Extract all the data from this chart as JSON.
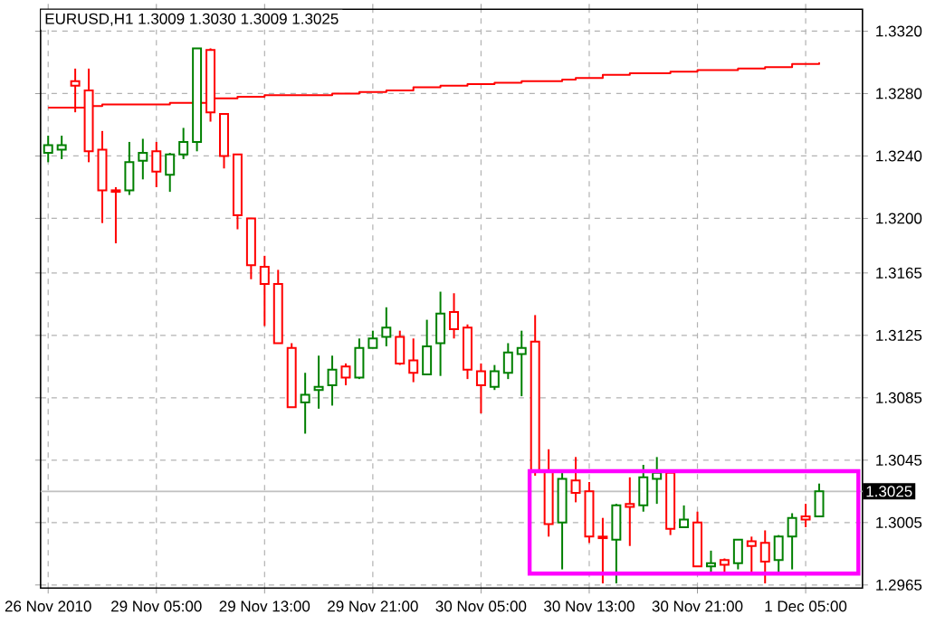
{
  "chart_data": {
    "type": "candlestick",
    "title": "EURUSD,H1  1.3009 1.3030 1.3009 1.3025",
    "categories": [
      "26 Nov 2010",
      null,
      null,
      null,
      null,
      null,
      null,
      null,
      "29 Nov 05:00",
      null,
      null,
      null,
      null,
      null,
      null,
      null,
      "29 Nov 13:00",
      null,
      null,
      null,
      null,
      null,
      null,
      null,
      "29 Nov 21:00",
      null,
      null,
      null,
      null,
      null,
      null,
      null,
      "30 Nov 05:00",
      null,
      null,
      null,
      null,
      null,
      null,
      null,
      "30 Nov 13:00",
      null,
      null,
      null,
      null,
      null,
      null,
      null,
      "30 Nov 21:00",
      null,
      null,
      null,
      null,
      null,
      null,
      null,
      "1 Dec 05:00",
      null
    ],
    "ohlc": [
      [
        1.3242,
        1.3253,
        1.3236,
        1.3247
      ],
      [
        1.3244,
        1.3253,
        1.3238,
        1.3247
      ],
      [
        1.3288,
        1.3296,
        1.3268,
        1.3285
      ],
      [
        1.3282,
        1.3296,
        1.3236,
        1.3243
      ],
      [
        1.3244,
        1.3256,
        1.3197,
        1.3218
      ],
      [
        1.3218,
        1.322,
        1.3184,
        1.3217
      ],
      [
        1.3218,
        1.3249,
        1.3215,
        1.3236
      ],
      [
        1.3237,
        1.3251,
        1.3225,
        1.3242
      ],
      [
        1.3243,
        1.3249,
        1.322,
        1.323
      ],
      [
        1.3228,
        1.3242,
        1.3217,
        1.3241
      ],
      [
        1.3241,
        1.3258,
        1.3238,
        1.3249
      ],
      [
        1.3249,
        1.3309,
        1.3243,
        1.3309
      ],
      [
        1.3308,
        1.3309,
        1.3262,
        1.3268
      ],
      [
        1.3267,
        1.3267,
        1.3232,
        1.324
      ],
      [
        1.3241,
        1.3241,
        1.3193,
        1.3202
      ],
      [
        1.32,
        1.32,
        1.3161,
        1.317
      ],
      [
        1.3169,
        1.3176,
        1.3131,
        1.3158
      ],
      [
        1.3158,
        1.3167,
        1.312,
        1.312
      ],
      [
        1.3117,
        1.312,
        1.3079,
        1.3079
      ],
      [
        1.3082,
        1.3101,
        1.3062,
        1.3087
      ],
      [
        1.309,
        1.3112,
        1.3078,
        1.3092
      ],
      [
        1.3093,
        1.3112,
        1.308,
        1.3103
      ],
      [
        1.3105,
        1.3107,
        1.3093,
        1.3098
      ],
      [
        1.3098,
        1.3123,
        1.3097,
        1.3117
      ],
      [
        1.3117,
        1.3128,
        1.3117,
        1.3123
      ],
      [
        1.3124,
        1.3143,
        1.3118,
        1.313
      ],
      [
        1.3124,
        1.3128,
        1.3106,
        1.3107
      ],
      [
        1.3109,
        1.3123,
        1.3095,
        1.3101
      ],
      [
        1.31,
        1.3135,
        1.31,
        1.3118
      ],
      [
        1.312,
        1.3153,
        1.3099,
        1.3139
      ],
      [
        1.314,
        1.3152,
        1.3123,
        1.3129
      ],
      [
        1.313,
        1.3132,
        1.3097,
        1.3103
      ],
      [
        1.3102,
        1.3107,
        1.3075,
        1.3093
      ],
      [
        1.3092,
        1.3106,
        1.309,
        1.3102
      ],
      [
        1.3101,
        1.312,
        1.3097,
        1.3114
      ],
      [
        1.3113,
        1.3128,
        1.3086,
        1.3117
      ],
      [
        1.3121,
        1.3138,
        1.3035,
        1.3038
      ],
      [
        1.3038,
        1.3052,
        1.2996,
        1.3004
      ],
      [
        1.3005,
        1.3038,
        1.2975,
        1.3033
      ],
      [
        1.3032,
        1.3047,
        1.3018,
        1.3024
      ],
      [
        1.3025,
        1.3031,
        1.2992,
        1.2996
      ],
      [
        1.2996,
        1.3008,
        1.2966,
        1.2995
      ],
      [
        1.2994,
        1.3017,
        1.2966,
        1.3016
      ],
      [
        1.3017,
        1.3034,
        1.299,
        1.3015
      ],
      [
        1.3016,
        1.3042,
        1.3012,
        1.3034
      ],
      [
        1.3033,
        1.3047,
        1.3017,
        1.3037
      ],
      [
        1.3037,
        1.3037,
        1.2997,
        1.3001
      ],
      [
        1.3002,
        1.3016,
        1.3002,
        1.3007
      ],
      [
        1.3005,
        1.3012,
        1.2977,
        1.2977
      ],
      [
        1.2977,
        1.2987,
        1.2973,
        1.2979
      ],
      [
        1.2981,
        1.2982,
        1.2973,
        1.2978
      ],
      [
        1.2979,
        1.2994,
        1.2975,
        1.2994
      ],
      [
        1.2993,
        1.2996,
        1.2973,
        1.299
      ],
      [
        1.2992,
        1.3,
        1.2966,
        1.298
      ],
      [
        1.2981,
        1.2997,
        1.2973,
        1.2996
      ],
      [
        1.2996,
        1.3011,
        1.2975,
        1.3008
      ],
      [
        1.3009,
        1.3017,
        1.3002,
        1.3007
      ],
      [
        1.3009,
        1.303,
        1.3009,
        1.3025
      ]
    ],
    "colors": [
      "#008000",
      "#008000",
      "#ff0000",
      "#ff0000",
      "#ff0000",
      "#ff0000",
      "#008000",
      "#008000",
      "#ff0000",
      "#008000",
      "#008000",
      "#008000",
      "#ff0000",
      "#ff0000",
      "#ff0000",
      "#ff0000",
      "#ff0000",
      "#ff0000",
      "#ff0000",
      "#008000",
      "#008000",
      "#008000",
      "#ff0000",
      "#008000",
      "#008000",
      "#008000",
      "#ff0000",
      "#ff0000",
      "#008000",
      "#008000",
      "#ff0000",
      "#ff0000",
      "#ff0000",
      "#008000",
      "#008000",
      "#008000",
      "#ff0000",
      "#ff0000",
      "#008000",
      "#ff0000",
      "#ff0000",
      "#ff0000",
      "#008000",
      "#ff0000",
      "#008000",
      "#008000",
      "#ff0000",
      "#008000",
      "#ff0000",
      "#008000",
      "#ff0000",
      "#008000",
      "#ff0000",
      "#ff0000",
      "#008000",
      "#008000",
      "#ff0000",
      "#008000"
    ],
    "series": [
      {
        "type": "step",
        "color": "#ff0000",
        "values": [
          1.3271,
          1.3271,
          1.3271,
          1.3272,
          1.3273,
          1.3273,
          1.3273,
          1.3273,
          1.3273,
          1.3274,
          1.3274,
          1.3274,
          1.3277,
          1.3277,
          1.3278,
          1.3278,
          1.3279,
          1.3279,
          1.3279,
          1.3279,
          1.3279,
          1.328,
          1.328,
          1.3281,
          1.3281,
          1.3282,
          1.3282,
          1.3284,
          1.3284,
          1.3285,
          1.3285,
          1.3286,
          1.3286,
          1.3287,
          1.3287,
          1.3288,
          1.3288,
          1.3288,
          1.3289,
          1.329,
          1.329,
          1.3292,
          1.3292,
          1.3293,
          1.3293,
          1.3293,
          1.3294,
          1.3294,
          1.3295,
          1.3295,
          1.3295,
          1.3296,
          1.3296,
          1.3297,
          1.3297,
          1.3299,
          1.3299,
          1.33
        ]
      }
    ],
    "ylim": [
      1.2963,
      1.3334
    ],
    "yticks": [
      {
        "value": 1.332,
        "label": "1.3320"
      },
      {
        "value": 1.328,
        "label": "1.3280"
      },
      {
        "value": 1.324,
        "label": "1.3240"
      },
      {
        "value": 1.32,
        "label": "1.3200"
      },
      {
        "value": 1.3165,
        "label": "1.3165"
      },
      {
        "value": 1.3125,
        "label": "1.3125"
      },
      {
        "value": 1.3085,
        "label": "1.3085"
      },
      {
        "value": 1.3045,
        "label": "1.3045"
      },
      {
        "value": 1.3005,
        "label": "1.3005"
      },
      {
        "value": 1.2965,
        "label": "1.2965"
      }
    ],
    "ref_lines": [
      {
        "axis": "y",
        "value": 1.3025,
        "label": "1.3025",
        "color": "#c0c0c0"
      }
    ],
    "grid": true
  }
}
